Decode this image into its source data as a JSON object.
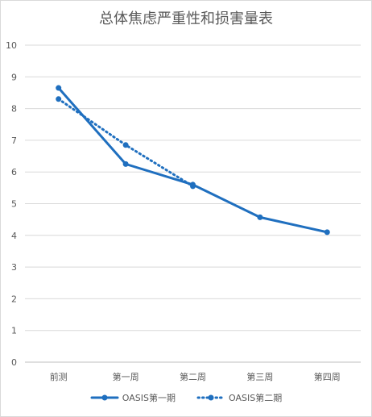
{
  "chart_data": {
    "type": "line",
    "title": "总体焦虑严重性和损害量表",
    "categories": [
      "前测",
      "第一周",
      "第二周",
      "第三周",
      "第四周"
    ],
    "ylim": [
      0,
      10
    ],
    "yticks": [
      "0",
      "1",
      "2",
      "3",
      "4",
      "5",
      "6",
      "7",
      "8",
      "9",
      "10"
    ],
    "grid": true,
    "legend_position": "bottom",
    "series": [
      {
        "name": "OASIS第一期",
        "values": [
          8.65,
          6.25,
          5.6,
          4.57,
          4.1
        ],
        "color": "#1f6fbf",
        "style": "solid"
      },
      {
        "name": "OASIS第二期",
        "values": [
          8.3,
          6.85,
          5.55,
          null,
          null
        ],
        "color": "#1f6fbf",
        "style": "dotted"
      }
    ]
  }
}
